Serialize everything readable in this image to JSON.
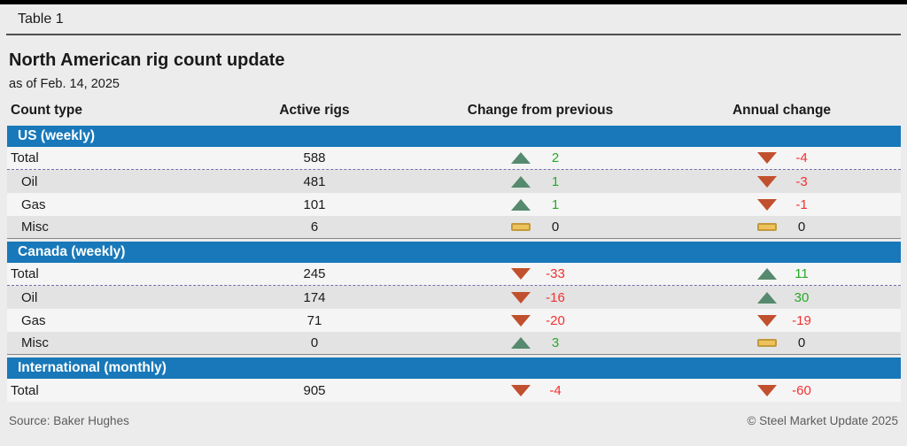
{
  "header": {
    "table_label": "Table 1"
  },
  "footer": {
    "source": "Source: Baker Hughes",
    "copyright": "© Steel Market Update 2025"
  },
  "colors": {
    "accent_blue": "#1878b9",
    "up_arrow": "#568a6e",
    "down_arrow": "#c1502e",
    "flat_fill": "#eec25a",
    "flat_border": "#c3993c",
    "up_text": "#27a827",
    "down_text": "#f53030"
  },
  "chart_data": {
    "type": "table",
    "title": "North American rig count update",
    "subtitle": "as of Feb. 14, 2025",
    "columns": [
      "Count type",
      "Active rigs",
      "Change from previous",
      "Annual change"
    ],
    "sections": [
      {
        "name": "US (weekly)",
        "rows": [
          {
            "label": "Total",
            "is_total": true,
            "active": "588",
            "change": {
              "dir": "up",
              "value": "2"
            },
            "annual": {
              "dir": "down",
              "value": "-4"
            }
          },
          {
            "label": "Oil",
            "is_total": false,
            "active": "481",
            "change": {
              "dir": "up",
              "value": "1"
            },
            "annual": {
              "dir": "down",
              "value": "-3"
            }
          },
          {
            "label": "Gas",
            "is_total": false,
            "active": "101",
            "change": {
              "dir": "up",
              "value": "1"
            },
            "annual": {
              "dir": "down",
              "value": "-1"
            }
          },
          {
            "label": "Misc",
            "is_total": false,
            "active": "6",
            "change": {
              "dir": "flat",
              "value": "0"
            },
            "annual": {
              "dir": "flat",
              "value": "0"
            }
          }
        ]
      },
      {
        "name": "Canada (weekly)",
        "rows": [
          {
            "label": "Total",
            "is_total": true,
            "active": "245",
            "change": {
              "dir": "down",
              "value": "-33"
            },
            "annual": {
              "dir": "up",
              "value": "11"
            }
          },
          {
            "label": "Oil",
            "is_total": false,
            "active": "174",
            "change": {
              "dir": "down",
              "value": "-16"
            },
            "annual": {
              "dir": "up",
              "value": "30"
            }
          },
          {
            "label": "Gas",
            "is_total": false,
            "active": "71",
            "change": {
              "dir": "down",
              "value": "-20"
            },
            "annual": {
              "dir": "down",
              "value": "-19"
            }
          },
          {
            "label": "Misc",
            "is_total": false,
            "active": "0",
            "change": {
              "dir": "up",
              "value": "3"
            },
            "annual": {
              "dir": "flat",
              "value": "0"
            }
          }
        ]
      },
      {
        "name": "International (monthly)",
        "rows": [
          {
            "label": "Total",
            "is_total": true,
            "active": "905",
            "change": {
              "dir": "down",
              "value": "-4"
            },
            "annual": {
              "dir": "down",
              "value": "-60"
            }
          }
        ]
      }
    ],
    "source": "Baker Hughes"
  }
}
